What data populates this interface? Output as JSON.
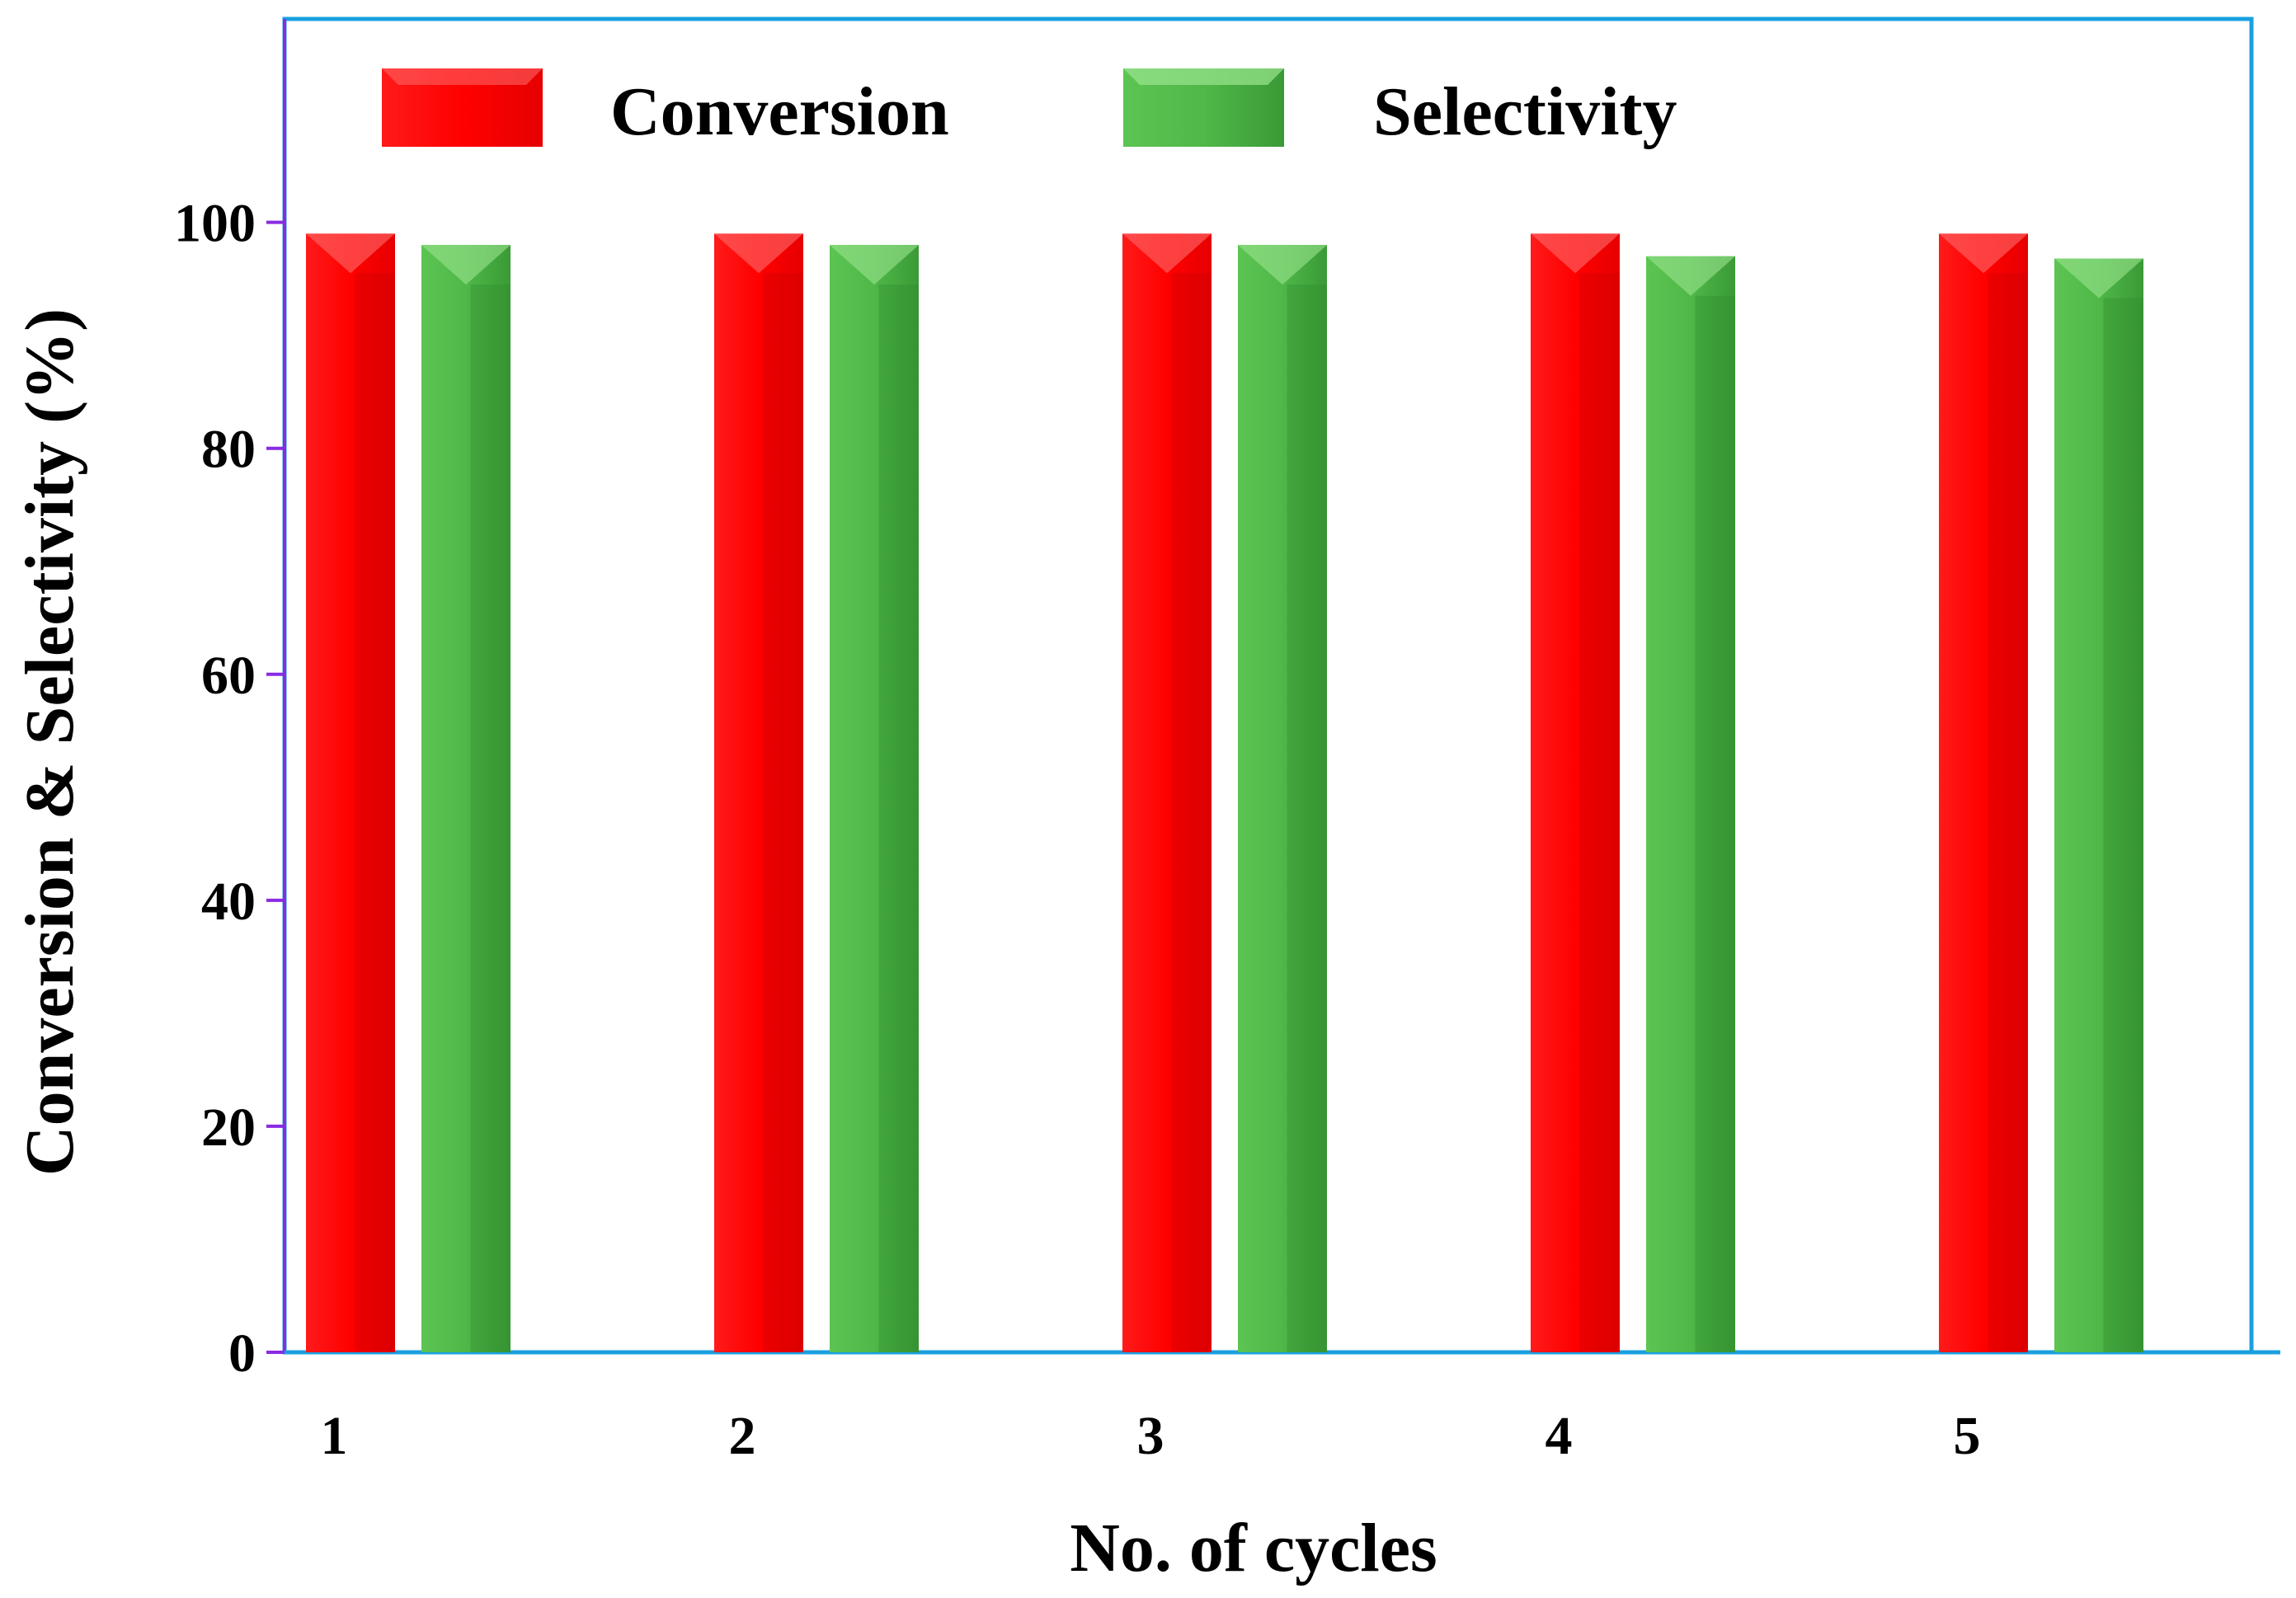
{
  "chart_data": {
    "type": "bar",
    "title": "",
    "xlabel": "No. of cycles",
    "ylabel": "Conversion & Selectivity (%)",
    "categories": [
      "1",
      "2",
      "3",
      "4",
      "5"
    ],
    "series": [
      {
        "name": "Conversion",
        "values": [
          99,
          99,
          99,
          99,
          99
        ],
        "color": "#ff0000"
      },
      {
        "name": "Selectivity",
        "values": [
          98,
          98,
          98,
          97,
          96.8
        ],
        "color": "#4fb848"
      }
    ],
    "ylim": [
      0,
      118
    ],
    "yticks": [
      0,
      20,
      40,
      60,
      80,
      100
    ],
    "ytick_labels": [
      "0",
      "20",
      "40",
      "60",
      "80",
      "100"
    ],
    "legend_position": "top",
    "grid": false,
    "colors": {
      "frame": "#1aa0e0",
      "axis": "#8a2be2"
    }
  }
}
